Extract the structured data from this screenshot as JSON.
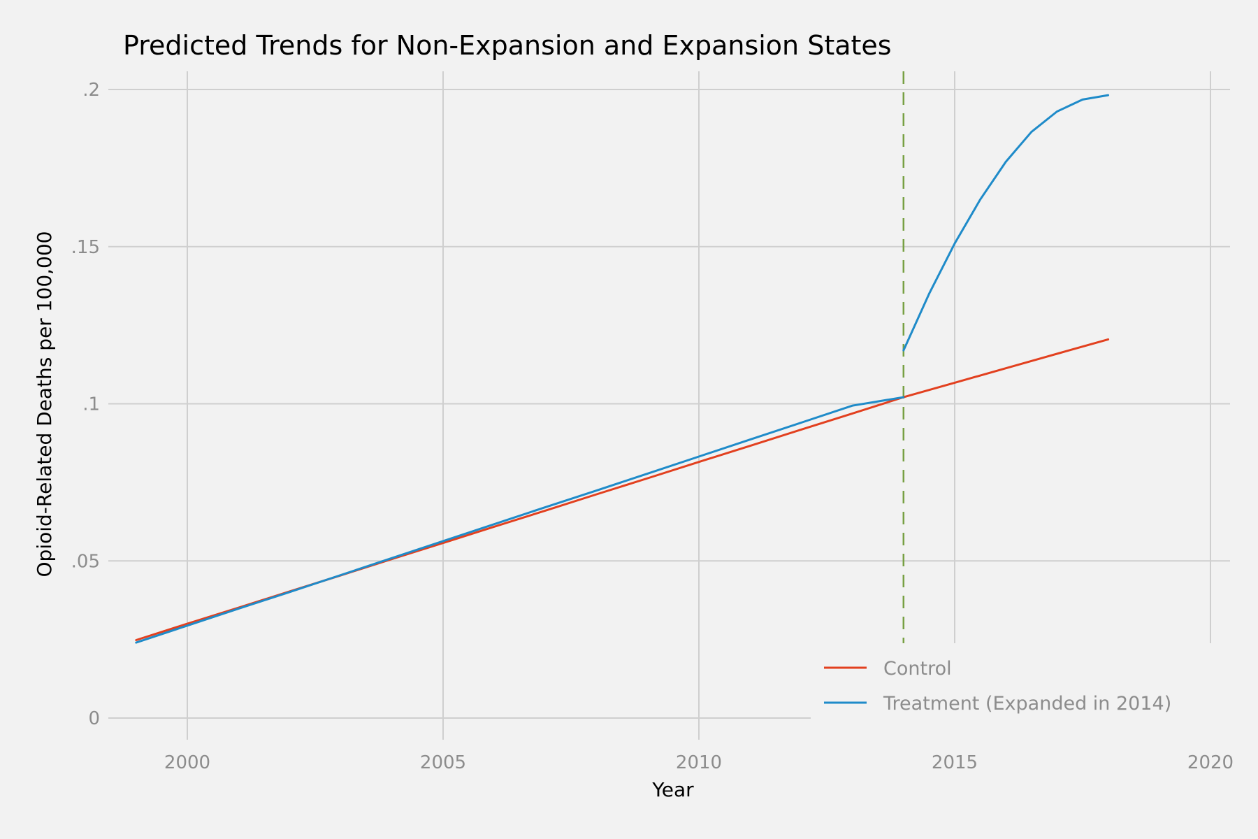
{
  "chart_data": {
    "type": "line",
    "title": "Predicted Trends for Non-Expansion and Expansion States",
    "xlabel": "Year",
    "ylabel": "Opioid-Related Deaths per 100,000",
    "xlim": [
      1998.5,
      2020.5
    ],
    "ylim": [
      -0.008,
      0.206
    ],
    "x_ticks": [
      2000,
      2005,
      2010,
      2015,
      2020
    ],
    "x_tick_labels": [
      "2000",
      "2005",
      "2010",
      "2015",
      "2020"
    ],
    "y_ticks": [
      0,
      0.05,
      0.1,
      0.15,
      0.2
    ],
    "y_tick_labels": [
      "0",
      ".05",
      ".1",
      ".15",
      ".2"
    ],
    "grid": true,
    "legend_position": "bottom-right",
    "reference_line": {
      "orientation": "vertical",
      "x": 2014,
      "style": "dashed",
      "color": "#77a043"
    },
    "series": [
      {
        "name": "Control",
        "color": "#e2401f",
        "x": [
          1999,
          2000,
          2001,
          2002,
          2003,
          2004,
          2005,
          2006,
          2007,
          2008,
          2009,
          2010,
          2011,
          2012,
          2013,
          2014,
          2015,
          2016,
          2017,
          2018
        ],
        "y": [
          0.0248,
          0.03,
          0.0351,
          0.0403,
          0.0454,
          0.0506,
          0.0557,
          0.0609,
          0.066,
          0.0712,
          0.0763,
          0.0815,
          0.0866,
          0.0918,
          0.0969,
          0.1021,
          0.1067,
          0.1113,
          0.1159,
          0.1205
        ]
      },
      {
        "name": "Treatment (Expanded in 2014)",
        "color": "#1f8bc9",
        "segments": [
          {
            "x": [
              1999,
              2000,
              2001,
              2002,
              2003,
              2004,
              2005,
              2006,
              2007,
              2008,
              2009,
              2010,
              2011,
              2012,
              2013,
              2014
            ],
            "y": [
              0.024,
              0.0294,
              0.0348,
              0.0401,
              0.0455,
              0.0509,
              0.0563,
              0.0617,
              0.0671,
              0.0724,
              0.0778,
              0.0832,
              0.0886,
              0.094,
              0.0994,
              0.1021
            ]
          },
          {
            "x": [
              2014,
              2014.5,
              2015,
              2015.5,
              2016,
              2016.5,
              2017,
              2017.5,
              2018
            ],
            "y": [
              0.117,
              0.135,
              0.151,
              0.165,
              0.177,
              0.1865,
              0.193,
              0.1968,
              0.1982
            ]
          }
        ]
      }
    ]
  }
}
